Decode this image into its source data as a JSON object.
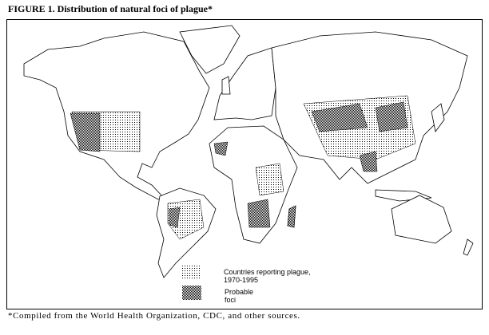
{
  "figure": {
    "title": "FIGURE 1. Distribution of natural foci of plague*",
    "footnote": "*Compiled from the World Health Organization, CDC, and other sources."
  },
  "legend": {
    "items": [
      {
        "label_line1": "Countries reporting plague,",
        "label_line2": "1970-1995",
        "pattern": "light-dotted"
      },
      {
        "label_line1": "Probable",
        "label_line2": "foci",
        "pattern": "dark-checkered"
      }
    ]
  },
  "colors": {
    "outline": "#000000",
    "background": "#ffffff"
  }
}
